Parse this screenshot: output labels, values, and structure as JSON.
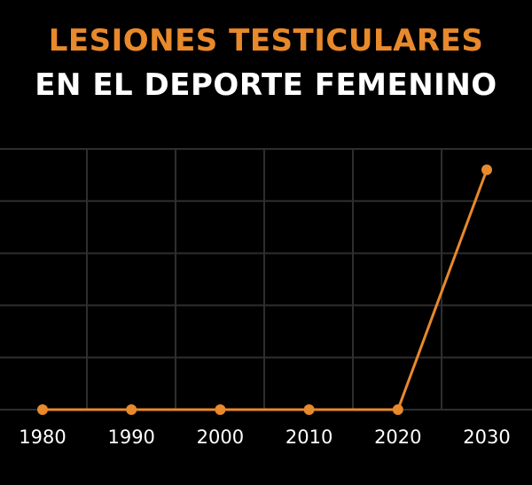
{
  "title_line1": "LESIONES TESTICULARES",
  "title_line2": "EN EL DEPORTE FEMENINO",
  "colors": {
    "background": "#000000",
    "accent": "#E8892B",
    "text": "#FFFFFF",
    "grid": "#2E2E2E"
  },
  "chart_data": {
    "type": "line",
    "title": "LESIONES TESTICULARES EN EL DEPORTE FEMENINO",
    "xlabel": "",
    "ylabel": "",
    "x": [
      1980,
      1990,
      2000,
      2010,
      2020,
      2030
    ],
    "x_tick_labels": [
      "1980",
      "1990",
      "2000",
      "2010",
      "2020",
      "2030"
    ],
    "series": [
      {
        "values": [
          0,
          0,
          0,
          0,
          0,
          4.6
        ]
      }
    ],
    "ylim": [
      0,
      5
    ],
    "y_tick_labels": [],
    "grid": true,
    "legend": "none"
  }
}
